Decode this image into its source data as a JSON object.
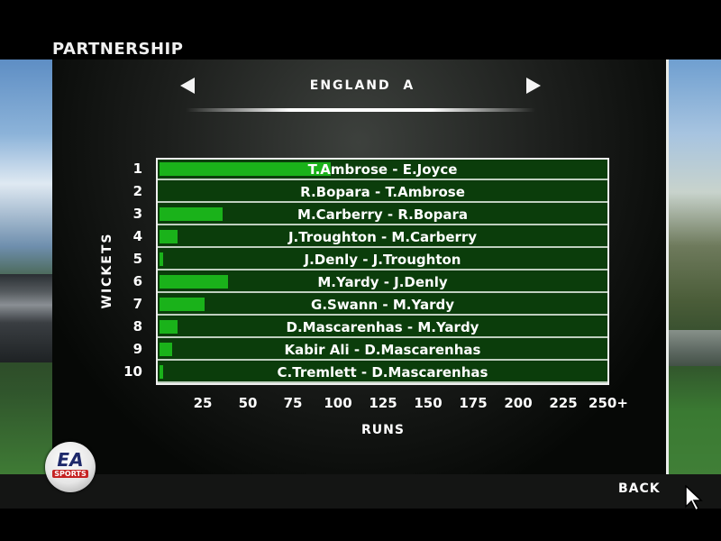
{
  "screen": {
    "title": "PARTNERSHIP",
    "team": "ENGLAND  A",
    "back_label": "BACK"
  },
  "logo": {
    "line1": "EA",
    "line2": "SPORTS"
  },
  "chart_data": {
    "type": "bar",
    "orientation": "horizontal",
    "xlabel": "RUNS",
    "ylabel": "WICKETS",
    "x_ticks": [
      "25",
      "50",
      "75",
      "100",
      "125",
      "150",
      "175",
      "200",
      "225",
      "250+"
    ],
    "xlim": [
      0,
      250
    ],
    "categories": [
      "1",
      "2",
      "3",
      "4",
      "5",
      "6",
      "7",
      "8",
      "9",
      "10"
    ],
    "labels": [
      "T.Ambrose - E.Joyce",
      "R.Bopara - T.Ambrose",
      "M.Carberry - R.Bopara",
      "J.Troughton - M.Carberry",
      "J.Denly - J.Troughton",
      "M.Yardy - J.Denly",
      "G.Swann - M.Yardy",
      "D.Mascarenhas - M.Yardy",
      "Kabir Ali - D.Mascarenhas",
      "C.Tremlett - D.Mascarenhas"
    ],
    "values": [
      95,
      0,
      35,
      10,
      2,
      38,
      25,
      10,
      7,
      2
    ],
    "bar_color": "#1ab21a"
  }
}
